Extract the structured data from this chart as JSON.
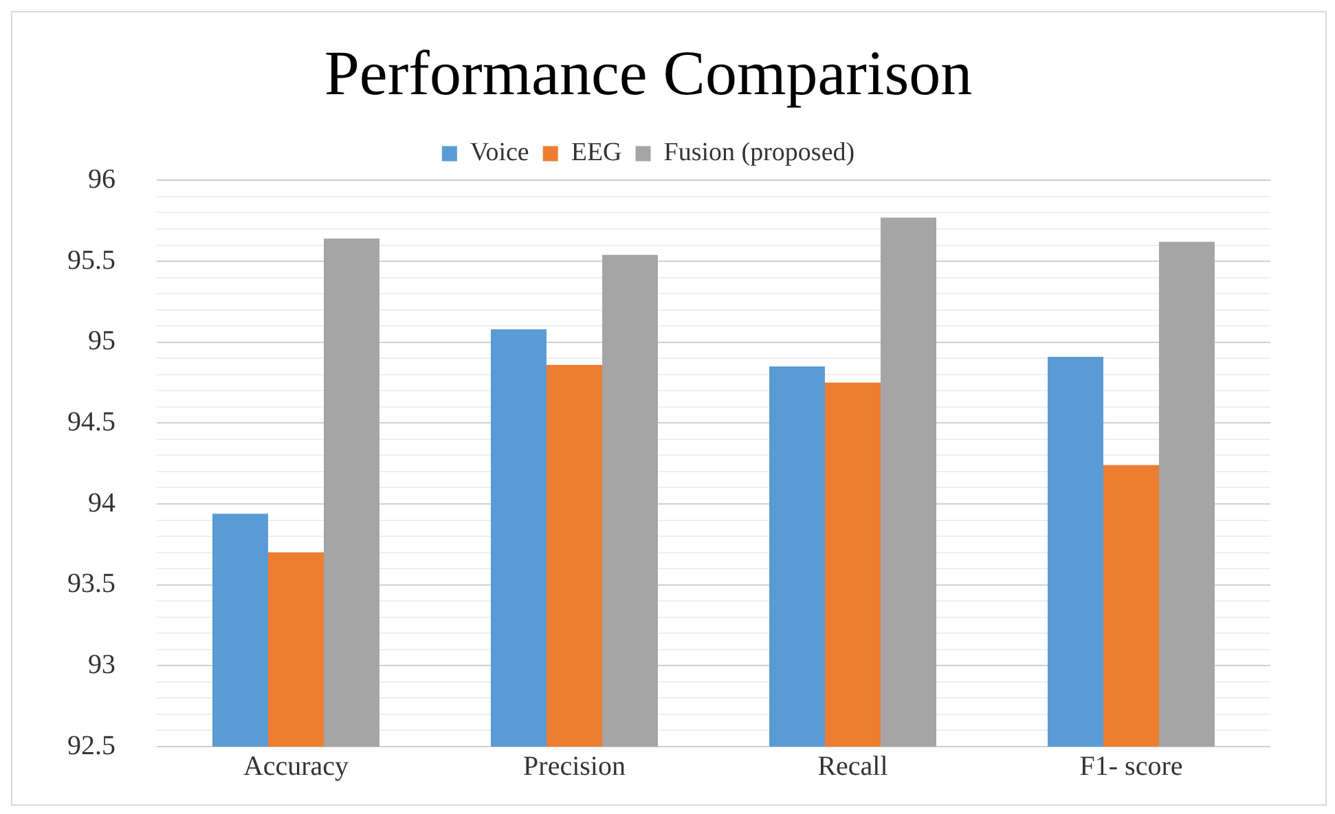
{
  "chart_data": {
    "type": "bar",
    "title": "Performance Comparison",
    "categories": [
      "Accuracy",
      "Precision",
      "Recall",
      "F1- score"
    ],
    "series": [
      {
        "name": "Voice",
        "color": "#5b9bd5",
        "values": [
          93.94,
          95.08,
          94.85,
          94.91
        ]
      },
      {
        "name": "EEG",
        "color": "#ed7d31",
        "values": [
          93.7,
          94.86,
          94.75,
          94.24
        ]
      },
      {
        "name": "Fusion (proposed)",
        "color": "#a5a5a5",
        "values": [
          95.64,
          95.54,
          95.77,
          95.62
        ]
      }
    ],
    "ylim": [
      92.5,
      96
    ],
    "yticks": [
      92.5,
      {
        "value": 92.6,
        "label": null
      },
      {
        "value": 92.7,
        "label": null
      },
      {
        "value": 92.8,
        "label": null
      },
      {
        "value": 92.9,
        "label": null
      },
      93,
      {
        "value": 93.1,
        "label": null
      },
      {
        "value": 93.2,
        "label": null
      },
      {
        "value": 93.3,
        "label": null
      },
      {
        "value": 93.4,
        "label": null
      },
      93.5,
      {
        "value": 93.6,
        "label": null
      },
      {
        "value": 93.7,
        "label": null
      },
      {
        "value": 93.8,
        "label": null
      },
      {
        "value": 93.9,
        "label": null
      },
      94,
      {
        "value": 94.1,
        "label": null
      },
      {
        "value": 94.2,
        "label": null
      },
      {
        "value": 94.3,
        "label": null
      },
      {
        "value": 94.4,
        "label": null
      },
      94.5,
      {
        "value": 94.6,
        "label": null
      },
      {
        "value": 94.7,
        "label": null
      },
      {
        "value": 94.8,
        "label": null
      },
      {
        "value": 94.9,
        "label": null
      },
      95,
      {
        "value": 95.1,
        "label": null
      },
      {
        "value": 95.2,
        "label": null
      },
      {
        "value": 95.3,
        "label": null
      },
      {
        "value": 95.4,
        "label": null
      },
      95.5,
      {
        "value": 95.6,
        "label": null
      },
      {
        "value": 95.7,
        "label": null
      },
      {
        "value": 95.8,
        "label": null
      },
      {
        "value": 95.9,
        "label": null
      },
      96
    ],
    "grid": "y",
    "legend": "top"
  }
}
